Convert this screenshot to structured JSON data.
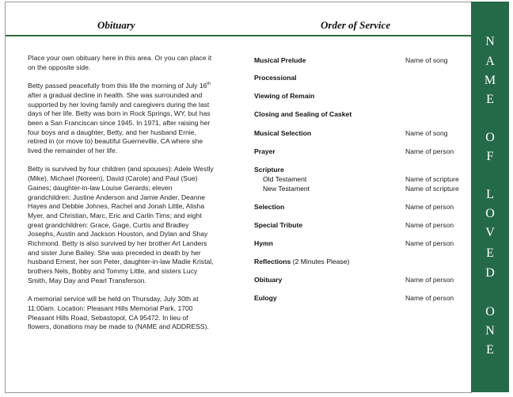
{
  "left_panel": {
    "title": "Obituary",
    "paragraphs": [
      {
        "lines": [
          "Place your own obituary here in this area. Or you can place it",
          "on the opposite side."
        ]
      },
      {
        "lines": [
          "Betty passed peacefully from this life the morning of July 16",
          "after a gradual decline in health.  She was surrounded and",
          "supported by her loving family and caregivers during the last",
          "days of her life.  Betty was born in Rock Springs, WY, but has",
          "been a San Franciscan since 1945.  In 1971, after raising her",
          "four boys and a daughter, Betty, and her husband Ernie,",
          "retired in (or move to) beautiful Guerneville, CA where she",
          "lived the remainder of her life."
        ],
        "superscript": "th"
      },
      {
        "lines": [
          "Betty is survived by four children (and spouses): Adele Westly",
          "(Mike), Michael (Noreen), David (Carole) and Paul (Sue)",
          "Gaines;  daughter-in-law Louise Gerards;  eleven",
          "grandchildren: Justine Anderson and Jamie Ander, Deanne",
          "Hayes and Debbie Johnes, Rachel and Jonah Little, Alisha",
          "Myer, and Christian, Marc, Eric and Carlin Tims;  and eight",
          "great grandchildren: Grace, Gage, Curtis and Bradley",
          "Josephs, Austin and Jackson Houston, and Dylan and Shay",
          "Richmond.  Betty is also survived by her brother Art Landers",
          "and sister June Bailey.  She was preceded in death by her",
          "husband Ernest, her son Peter, daughter-in-law Madie Kristal,",
          "brothers Nels, Bobby and Tommy Little, and sisters Lucy",
          "Smith, May Day and Pearl Transferson."
        ]
      },
      {
        "lines": [
          "A memorial service will be held on Thursday, July 30th at",
          "11:00am.  Location:  Pleasant Hills Memorial Park, 1700",
          "Pleasant Hills Road, Sebastopol, CA 95472.  In lieu of",
          "flowers, donations may be made to (NAME and ADDRESS)."
        ]
      }
    ]
  },
  "right_panel": {
    "title": "Order of Service",
    "items": [
      {
        "label": "Musical Prelude",
        "value": "Name of song"
      },
      {
        "label": "Processional"
      },
      {
        "label": "Viewing of Remain"
      },
      {
        "label": "Closing and Sealing of Casket"
      },
      {
        "label": "Musical Selection",
        "value": "Name of song"
      },
      {
        "label": "Prayer",
        "value": "Name of person"
      },
      {
        "label": "Scripture"
      },
      {
        "label": "Old Testament",
        "value": "Name of scripture",
        "sub": true
      },
      {
        "label": "New Testament",
        "value": "Name of scripture",
        "sub": true
      },
      {
        "label": "Selection",
        "value": "Name of person"
      },
      {
        "label": "Special Tribute",
        "value": "Name of person"
      },
      {
        "label": "Hymn",
        "value": "Name of person"
      },
      {
        "label": "Reflections",
        "note": " (2 Minutes Please)"
      },
      {
        "label": "Obituary",
        "value": "Name of person"
      },
      {
        "label": "Eulogy",
        "value": "Name of person"
      }
    ]
  },
  "side_band": {
    "text": "NAME OF LOVED ONE",
    "letters": [
      "N",
      "A",
      "M",
      "E",
      "O",
      "F",
      "L",
      "O",
      "V",
      "E",
      "D",
      "O",
      "N",
      "E"
    ],
    "color": "#256a48"
  }
}
